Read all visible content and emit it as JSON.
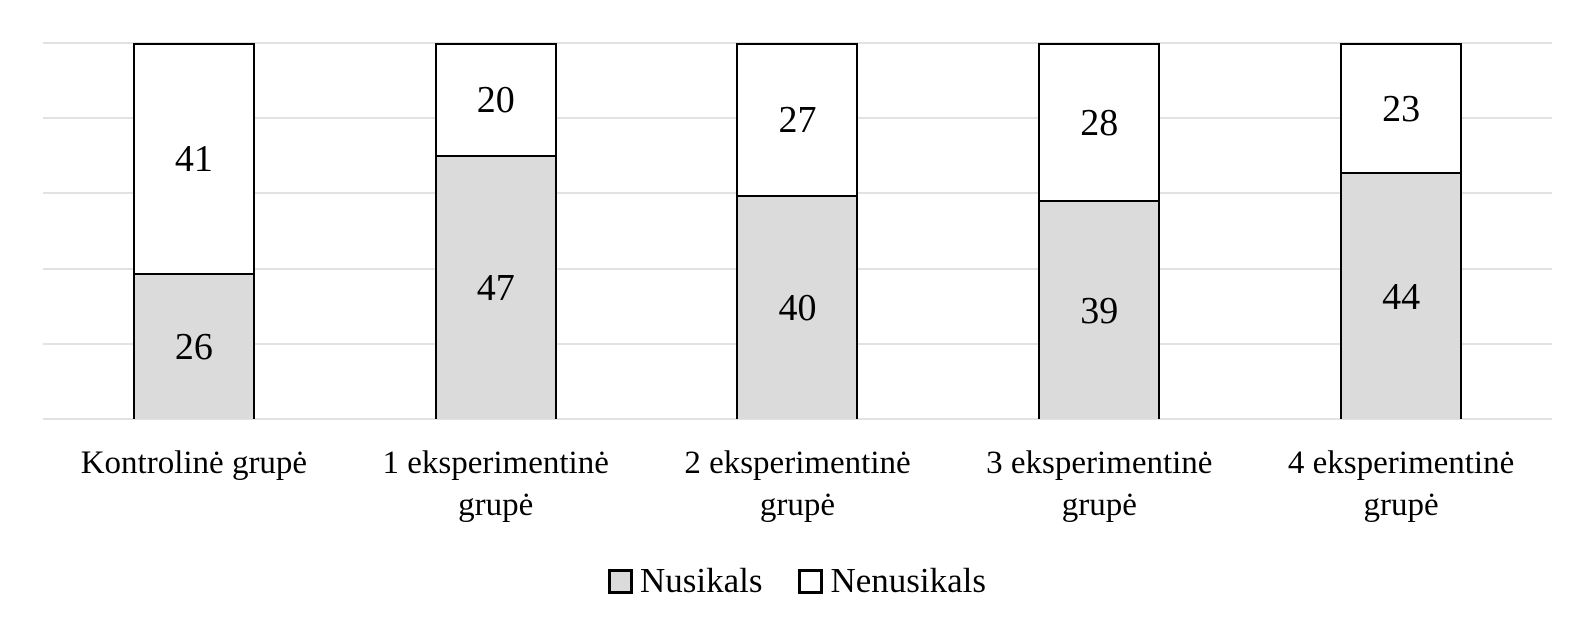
{
  "chart_data": {
    "type": "bar",
    "stacked": true,
    "title": "",
    "xlabel": "",
    "ylabel": "",
    "categories": [
      "Kontrolinė grupė",
      "1 eksperimentinė grupė",
      "2 eksperimentinė grupė",
      "3 eksperimentinė grupė",
      "4 eksperimentinė grupė"
    ],
    "series": [
      {
        "name": "Nusikals",
        "values": [
          26,
          47,
          40,
          39,
          44
        ],
        "color": "#DBDBDB"
      },
      {
        "name": "Nenusikals",
        "values": [
          41,
          20,
          27,
          28,
          23
        ],
        "color": "#FFFFFF"
      }
    ],
    "bar_totals": [
      67,
      67,
      67,
      67,
      67
    ],
    "ylim": [
      0,
      67
    ],
    "gridline_intervals": 5,
    "grid": true,
    "y_axis_labels_visible": false,
    "legend_position": "bottom",
    "colors": {
      "bar_border": "#000000",
      "gridline": "#E2E2E2",
      "data_label": "#000000",
      "text": "#000000",
      "background": "#FFFFFF"
    }
  }
}
